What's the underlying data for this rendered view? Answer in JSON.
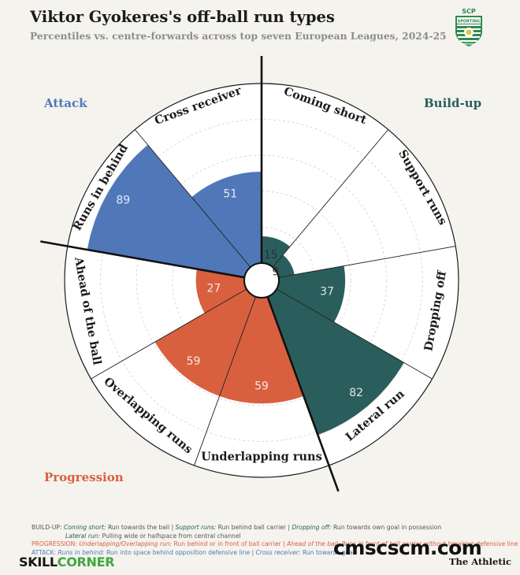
{
  "header": {
    "title": "Viktor Gyokeres's off-ball run types",
    "subtitle": "Percentiles vs. centre-forwards across top seven European Leagues, 2024-25",
    "logo_text": [
      "SCP",
      "SPORTING",
      "PORTUGAL"
    ]
  },
  "groups": [
    {
      "key": "build",
      "name": "Build-up",
      "color": "#2a5e5d"
    },
    {
      "key": "prog",
      "name": "Progression",
      "color": "#d9603f"
    },
    {
      "key": "attack",
      "name": "Attack",
      "color": "#5078b8"
    }
  ],
  "chart_data": {
    "type": "polar-bar",
    "categories": [
      "Coming short",
      "Support runs",
      "Dropping off",
      "Lateral run",
      "Underlapping runs",
      "Overlapping runs",
      "Ahead of the ball",
      "Runs in behind",
      "Cross receiver"
    ],
    "values": [
      15,
      9,
      37,
      82,
      59,
      59,
      27,
      89,
      51
    ],
    "category_groups": [
      "build",
      "build",
      "build",
      "build",
      "prog",
      "prog",
      "prog",
      "attack",
      "attack"
    ],
    "rlim": [
      0,
      100
    ],
    "grid": true
  },
  "footer": {
    "build_prefix": "BUILD-UP:",
    "build_items": [
      {
        "term": "Coming short:",
        "desc": " Run towards the ball"
      },
      {
        "term": "Support runs:",
        "desc": " Run behind ball carrier"
      },
      {
        "term": "Dropping off:",
        "desc": " Run towards own goal in possession"
      }
    ],
    "lateral_term": "Lateral run:",
    "lateral_desc": " Pulling wide or halfspace from central channel",
    "prog_prefix": "PROGRESSION:",
    "prog_items": [
      {
        "term": "Underlapping/Overlapping run:",
        "desc": " Run behind or in front of ball carrier"
      },
      {
        "term": "Ahead of the ball:",
        "desc": " Runs in front of ball carrier without breaking defensive line"
      }
    ],
    "attack_prefix": "ATTACK:",
    "attack_items": [
      {
        "term": "Runs in behind:",
        "desc": " Run into space behind opposition defensive line"
      },
      {
        "term": "Cross receiver:",
        "desc": " Run towards goal"
      }
    ],
    "separator": " | "
  },
  "branding": {
    "skill_a": "SKILL",
    "skill_b": "CORNER",
    "watermark": "cmscscm.com",
    "publisher": "The Athletic"
  }
}
